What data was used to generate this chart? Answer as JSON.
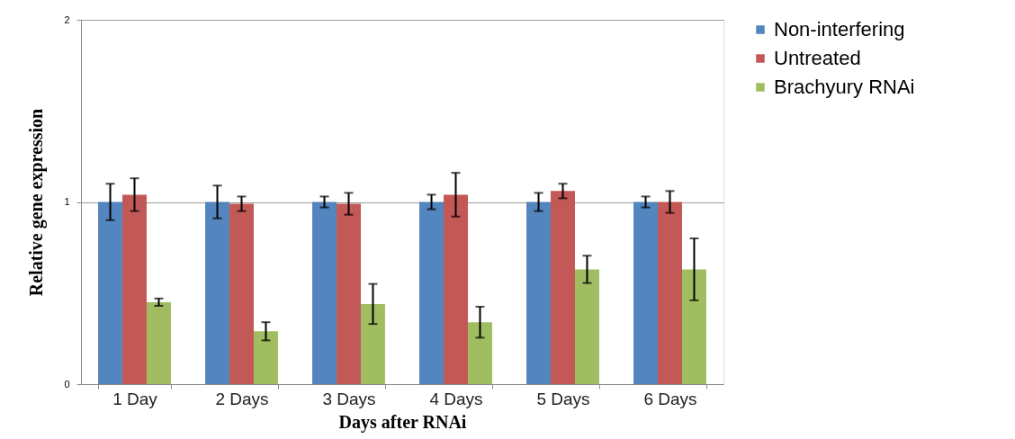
{
  "chart_data": {
    "type": "bar",
    "xlabel": "Days after RNAi",
    "ylabel": "Relative gene expression",
    "categories": [
      "1 Day",
      "2 Days",
      "3 Days",
      "4 Days",
      "5 Days",
      "6 Days"
    ],
    "series": [
      {
        "name": "Non-interfering",
        "color": "#4a7ebb",
        "values": [
          1.0,
          1.0,
          1.0,
          1.0,
          1.0,
          1.0
        ],
        "errors": [
          0.1,
          0.09,
          0.03,
          0.04,
          0.05,
          0.03
        ]
      },
      {
        "name": "Untreated",
        "color": "#c0504d",
        "values": [
          1.04,
          0.99,
          0.99,
          1.04,
          1.06,
          1.0
        ],
        "errors": [
          0.09,
          0.04,
          0.06,
          0.12,
          0.04,
          0.06
        ]
      },
      {
        "name": "Brachyury RNAi",
        "color": "#9bbb59",
        "values": [
          0.45,
          0.29,
          0.44,
          0.34,
          0.63,
          0.63
        ],
        "errors": [
          0.02,
          0.05,
          0.11,
          0.085,
          0.075,
          0.17
        ]
      }
    ],
    "ylim": [
      0,
      2
    ],
    "yticks": [
      0,
      1,
      2
    ],
    "grid": "y",
    "legend": "right"
  }
}
